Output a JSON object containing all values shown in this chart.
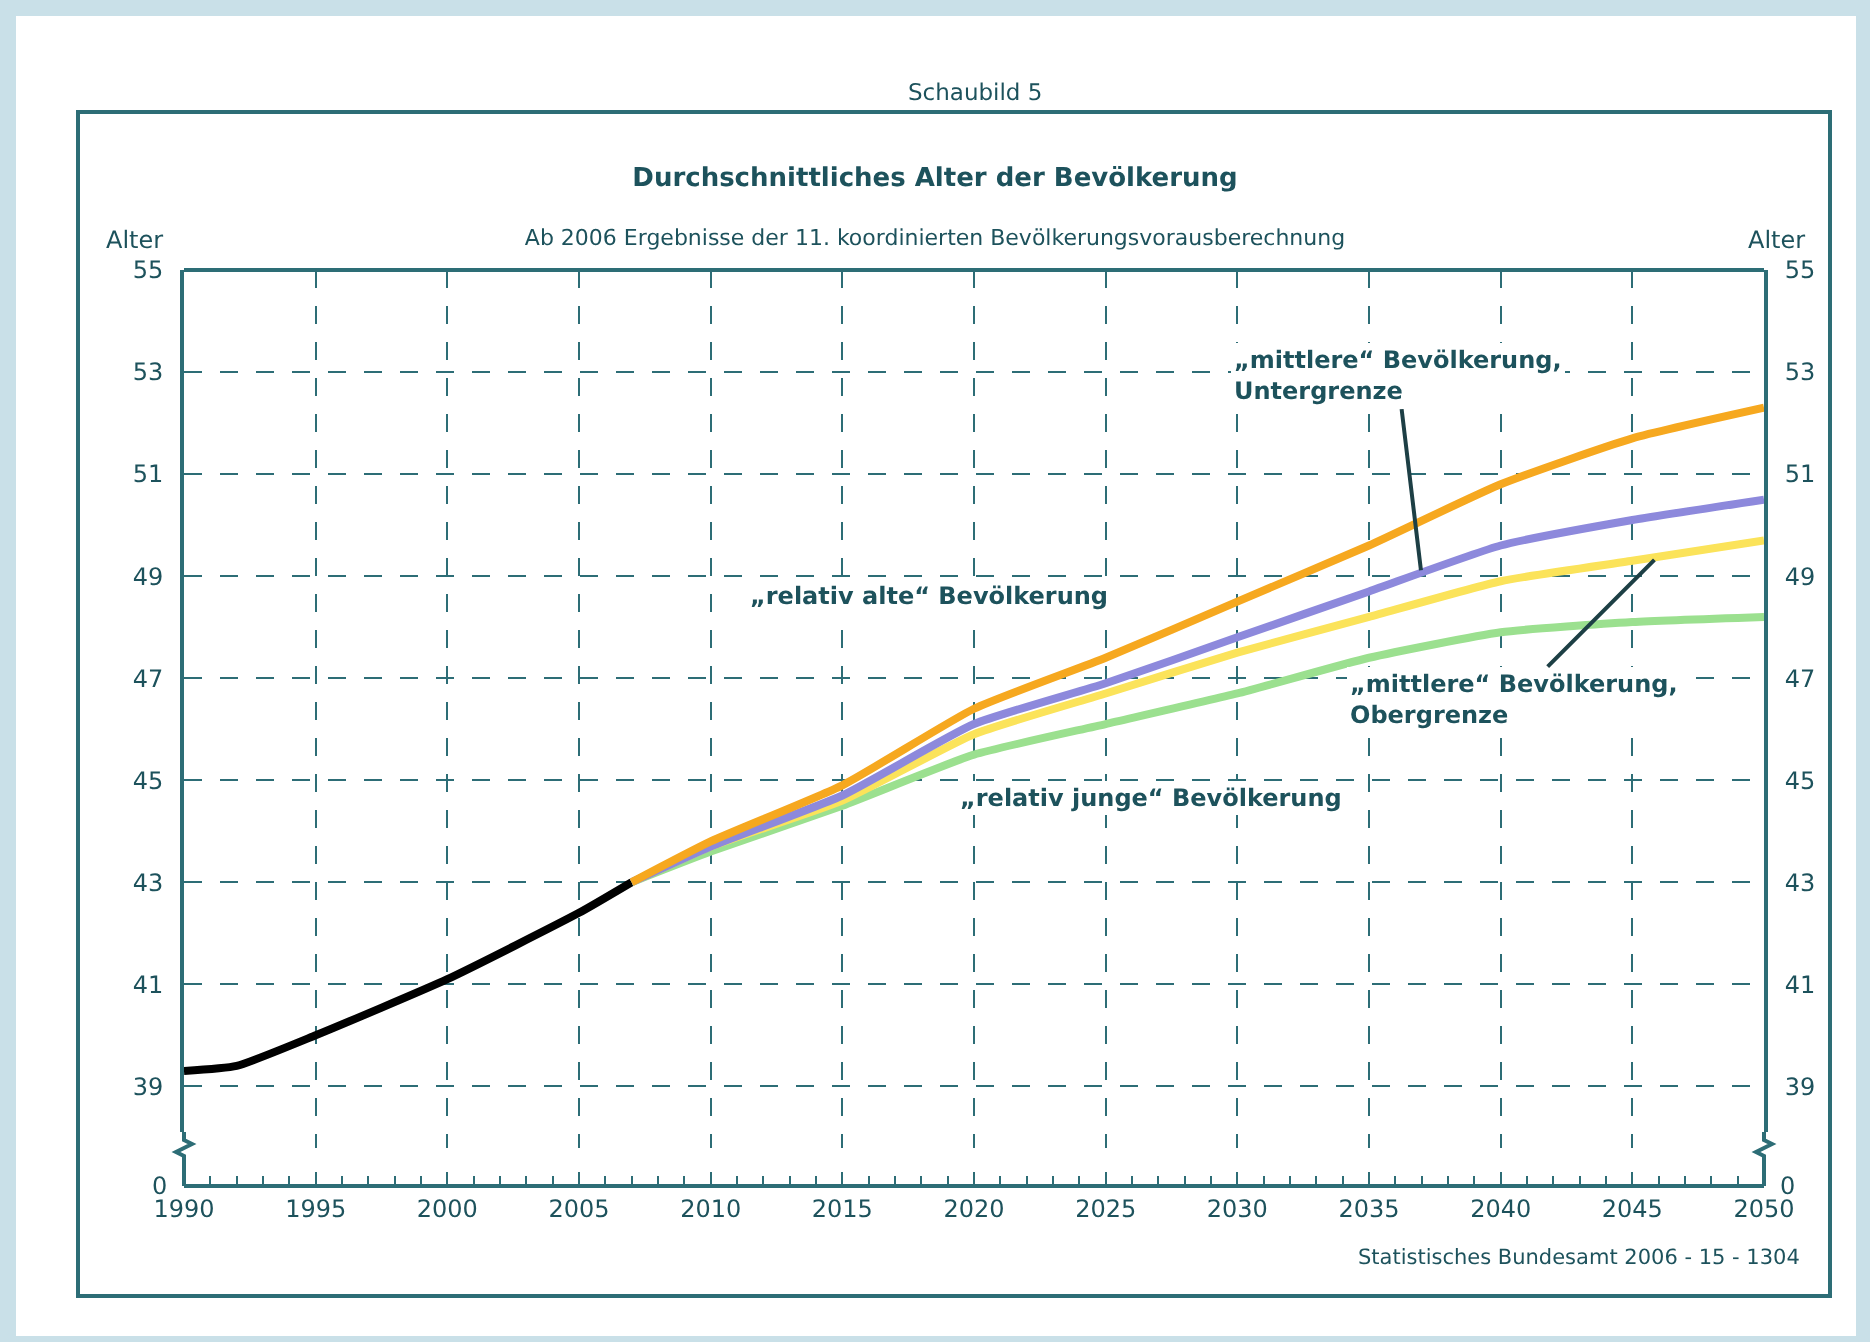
{
  "chart_data": {
    "type": "line",
    "title": "Durchschnittliches Alter der Bevölkerung",
    "subtitle": "Ab 2006 Ergebnisse der 11. koordinierten Bevölkerungsvorausberechnung",
    "ylabel": "Alter",
    "y2label": "Alter",
    "series": [
      {
        "color": "#000000",
        "x": [
          1990,
          1992,
          1995,
          2000,
          2005,
          2007
        ],
        "values": [
          39.3,
          39.4,
          40.0,
          41.1,
          42.4,
          43.0
        ]
      },
      {
        "color": "#9be08f",
        "x": [
          2007,
          2010,
          2015,
          2020,
          2025,
          2030,
          2035,
          2040,
          2045,
          2050
        ],
        "values": [
          43.0,
          43.6,
          44.5,
          45.5,
          46.1,
          46.7,
          47.4,
          47.9,
          48.1,
          48.2
        ]
      },
      {
        "color": "#fbe35a",
        "x": [
          2007,
          2010,
          2015,
          2020,
          2025,
          2030,
          2035,
          2040,
          2045,
          2050
        ],
        "values": [
          43.0,
          43.7,
          44.6,
          45.9,
          46.7,
          47.5,
          48.2,
          48.9,
          49.3,
          49.7
        ]
      },
      {
        "color": "#8d89dc",
        "x": [
          2007,
          2010,
          2015,
          2020,
          2025,
          2030,
          2035,
          2040,
          2045,
          2050
        ],
        "values": [
          43.0,
          43.7,
          44.7,
          46.1,
          46.9,
          47.8,
          48.7,
          49.6,
          50.1,
          50.5
        ]
      },
      {
        "color": "#f6a81f",
        "x": [
          2007,
          2010,
          2015,
          2020,
          2025,
          2030,
          2035,
          2040,
          2045,
          2050
        ],
        "values": [
          43.0,
          43.8,
          44.9,
          46.4,
          47.4,
          48.5,
          49.6,
          50.8,
          51.7,
          52.3
        ]
      }
    ],
    "xlim": [
      1990,
      2050
    ],
    "xticks": [
      1990,
      1995,
      2000,
      2005,
      2010,
      2015,
      2020,
      2025,
      2030,
      2035,
      2040,
      2045,
      2050
    ],
    "ylim": [
      37.8,
      55
    ],
    "yticks": [
      39,
      41,
      43,
      45,
      47,
      49,
      51,
      53,
      55
    ],
    "y2lim": [
      37.8,
      55
    ],
    "y2ticks": [
      39,
      41,
      43,
      45,
      47,
      49,
      51,
      53,
      55
    ],
    "grid": true,
    "marker": "none",
    "line_style": "solid",
    "annotations": [
      "Schaubild 5",
      {
        "text": "„relativ alte“ Bevölkerung",
        "x": 2025,
        "y": 47.4
      },
      {
        "text": "„mittlere“ Bevölkerung,\nUntergrenze",
        "x": 2037,
        "y": 49.0
      },
      {
        "text": "„mittlere“ Bevölkerung,\nObergrenze",
        "x": 2046,
        "y": 49.4
      },
      {
        "text": "„relativ junge“ Bevölkerung",
        "x": 2017,
        "y": 44.9
      },
      "Statistisches Bundesamt 2006 - 15 - 1304",
      "0",
      "0"
    ]
  }
}
